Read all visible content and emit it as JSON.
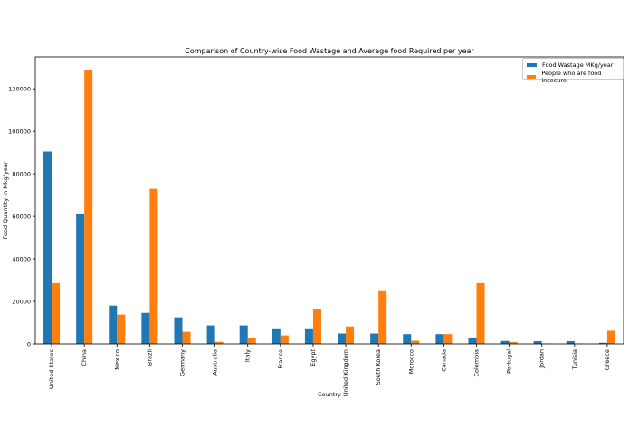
{
  "chart_data": {
    "type": "bar",
    "title": "Comparison of Country-wise Food Wastage and Average food Required per year",
    "xlabel": "Country",
    "ylabel": "Food Quantity in Mkg/year",
    "ylim": [
      0,
      135000
    ],
    "yticks": [
      0,
      20000,
      40000,
      60000,
      80000,
      100000,
      120000
    ],
    "grid": false,
    "legend_position": "upper right",
    "categories": [
      "United States",
      "China",
      "Mexico",
      "Brazil",
      "Germany",
      "Australia",
      "Italy",
      "France",
      "Egypt",
      "United Kingdom",
      "South Korea",
      "Morocco",
      "Canada",
      "Colombia",
      "Portugal",
      "Jordan",
      "Tunisia",
      "Greece"
    ],
    "series": [
      {
        "name": "Food Wastage MKg/year",
        "color": "#1f77b4",
        "values": [
          90500,
          61000,
          18000,
          14600,
          12500,
          8700,
          8700,
          6900,
          6900,
          4900,
          4900,
          4600,
          4600,
          3000,
          1400,
          1300,
          1300,
          500
        ]
      },
      {
        "name": "People who are food insecure",
        "color": "#ff7f0e",
        "values": [
          28600,
          129000,
          13800,
          73000,
          5700,
          1000,
          2700,
          4000,
          16500,
          8200,
          24800,
          1500,
          4600,
          28600,
          900,
          200,
          200,
          6200
        ]
      }
    ]
  }
}
